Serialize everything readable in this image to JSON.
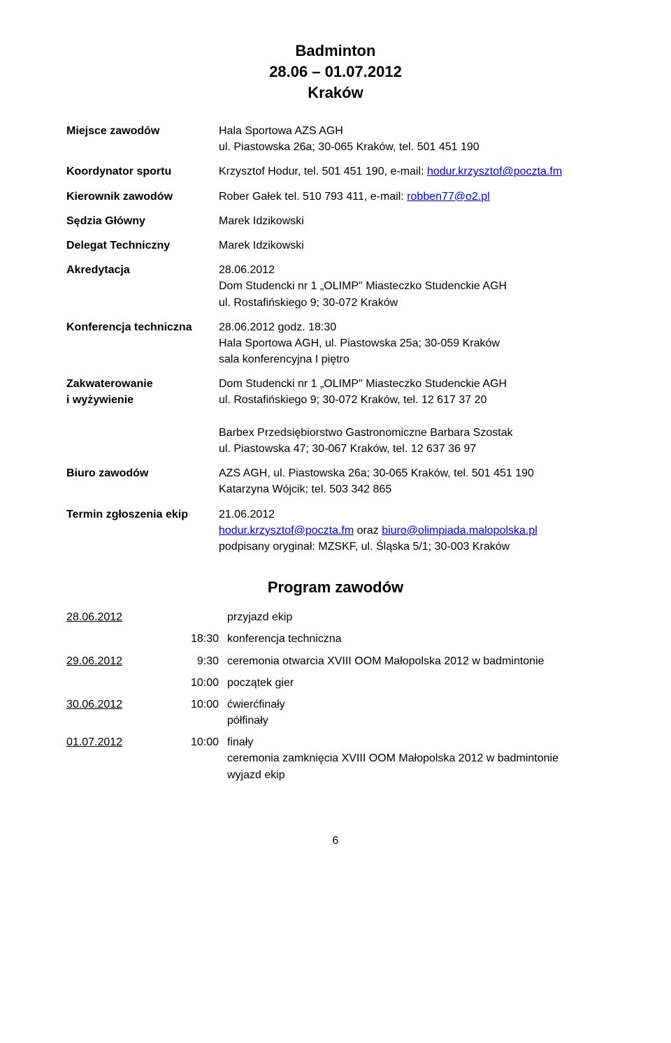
{
  "header": {
    "title": "Badminton",
    "dates": "28.06 – 01.07.2012",
    "city": "Kraków"
  },
  "info": {
    "miejsce_label": "Miejsce zawodów",
    "miejsce_line1": "Hala Sportowa AZS AGH",
    "miejsce_line2": "ul. Piastowska 26a; 30-065 Kraków, tel. 501 451 190",
    "koordynator_label": "Koordynator sportu",
    "koordynator_text": "Krzysztof Hodur, tel. 501 451 190, e-mail: ",
    "koordynator_email": "hodur.krzysztof@poczta.fm",
    "kierownik_label": "Kierownik zawodów",
    "kierownik_text": "Rober Gałek tel. 510 793 411, e-mail: ",
    "kierownik_email": "robben77@o2.pl",
    "sedzia_label": "Sędzia Główny",
    "sedzia_value": "Marek Idzikowski",
    "delegat_label": "Delegat Techniczny",
    "delegat_value": "Marek Idzikowski",
    "akredytacja_label": "Akredytacja",
    "akredytacja_line1": "28.06.2012",
    "akredytacja_line2": "Dom Studencki nr 1 „OLIMP\" Miasteczko Studenckie AGH",
    "akredytacja_line3": "ul. Rostafińskiego 9; 30-072 Kraków",
    "konferencja_label": "Konferencja techniczna",
    "konferencja_line1": "28.06.2012 godz. 18:30",
    "konferencja_line2": "Hala Sportowa AGH, ul. Piastowska 25a; 30-059 Kraków",
    "konferencja_line3": "sala konferencyjna I piętro",
    "zakwaterowanie_label1": "Zakwaterowanie",
    "zakwaterowanie_label2": "i wyżywienie",
    "zakwaterowanie_line1": "Dom Studencki nr 1 „OLIMP\" Miasteczko Studenckie AGH",
    "zakwaterowanie_line2": "ul. Rostafińskiego 9; 30-072 Kraków, tel. 12 617 37 20",
    "zakwaterowanie_line3": "Barbex Przedsiębiorstwo Gastronomiczne Barbara Szostak",
    "zakwaterowanie_line4": "ul. Piastowska 47; 30-067 Kraków, tel. 12 637 36 97",
    "biuro_label": "Biuro zawodów",
    "biuro_line1": "AZS AGH, ul. Piastowska 26a; 30-065 Kraków, tel. 501 451 190",
    "biuro_line2": "Katarzyna Wójcik; tel. 503 342 865",
    "termin_label": "Termin zgłoszenia ekip",
    "termin_line1": "21.06.2012",
    "termin_email1": "hodur.krzysztof@poczta.fm",
    "termin_middle": " oraz ",
    "termin_email2": "biuro@olimpiada.malopolska.pl",
    "termin_line3": "podpisany oryginał: MZSKF, ul. Śląska 5/1; 30-003 Kraków"
  },
  "program": {
    "heading": "Program zawodów",
    "rows": [
      {
        "date": "28.06.2012",
        "time": "",
        "desc": "przyjazd ekip"
      },
      {
        "date": "",
        "time": "18:30",
        "desc": "konferencja techniczna"
      },
      {
        "date": "29.06.2012",
        "time": "9:30",
        "desc": "ceremonia otwarcia XVIII OOM Małopolska 2012 w badmintonie"
      },
      {
        "date": "",
        "time": "10:00",
        "desc": "początek gier"
      },
      {
        "date": "30.06.2012",
        "time": "10:00",
        "desc": "ćwierćfinały\npółfinały"
      },
      {
        "date": "01.07.2012",
        "time": "10:00",
        "desc": "finały\nceremonia zamknięcia XVIII OOM Małopolska 2012 w badmintonie\nwyjazd ekip"
      }
    ]
  },
  "footer": {
    "page_number": "6"
  }
}
